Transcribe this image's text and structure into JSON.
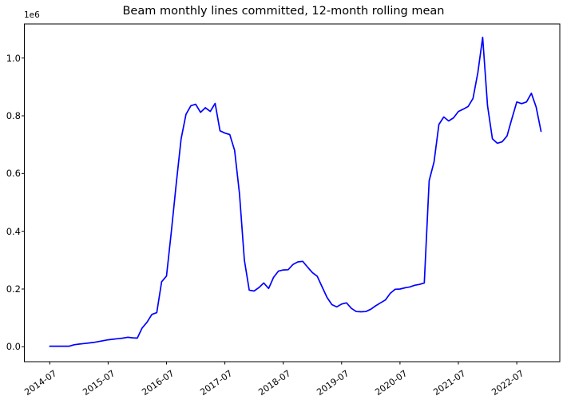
{
  "chart_data": {
    "type": "line",
    "title": "Beam monthly lines committed, 12-month rolling mean",
    "xlabel": "",
    "ylabel": "",
    "y_offset_label": "1e6",
    "grid": false,
    "legend": null,
    "series_color": "#0000ff",
    "axis_color": "#000000",
    "x_tick_labels": [
      "2014-07",
      "2015-07",
      "2016-07",
      "2017-07",
      "2018-07",
      "2019-07",
      "2020-07",
      "2021-07",
      "2022-07"
    ],
    "y_tick_labels": [
      "0.0",
      "0.2",
      "0.4",
      "0.6",
      "0.8",
      "1.0"
    ],
    "ylim": [
      -0.052,
      1.118
    ],
    "value_scale": "1e6",
    "x": [
      "2014-07",
      "2014-08",
      "2014-09",
      "2014-10",
      "2014-11",
      "2014-12",
      "2015-01",
      "2015-02",
      "2015-03",
      "2015-04",
      "2015-05",
      "2015-06",
      "2015-07",
      "2015-08",
      "2015-09",
      "2015-10",
      "2015-11",
      "2015-12",
      "2016-01",
      "2016-02",
      "2016-03",
      "2016-04",
      "2016-05",
      "2016-06",
      "2016-07",
      "2016-08",
      "2016-09",
      "2016-10",
      "2016-11",
      "2016-12",
      "2017-01",
      "2017-02",
      "2017-03",
      "2017-04",
      "2017-05",
      "2017-06",
      "2017-07",
      "2017-08",
      "2017-09",
      "2017-10",
      "2017-11",
      "2017-12",
      "2018-01",
      "2018-02",
      "2018-03",
      "2018-04",
      "2018-05",
      "2018-06",
      "2018-07",
      "2018-08",
      "2018-09",
      "2018-10",
      "2018-11",
      "2018-12",
      "2019-01",
      "2019-02",
      "2019-03",
      "2019-04",
      "2019-05",
      "2019-06",
      "2019-07",
      "2019-08",
      "2019-09",
      "2019-10",
      "2019-11",
      "2019-12",
      "2020-01",
      "2020-02",
      "2020-03",
      "2020-04",
      "2020-05",
      "2020-06",
      "2020-07",
      "2020-08",
      "2020-09",
      "2020-10",
      "2020-11",
      "2020-12",
      "2021-01",
      "2021-02",
      "2021-03",
      "2021-04",
      "2021-05",
      "2021-06",
      "2021-07",
      "2021-08",
      "2021-09",
      "2021-10",
      "2021-11",
      "2021-12",
      "2022-01",
      "2022-02",
      "2022-03",
      "2022-04",
      "2022-05",
      "2022-06",
      "2022-07",
      "2022-08",
      "2022-09",
      "2022-10",
      "2022-11",
      "2022-12"
    ],
    "series": [
      {
        "name": "12-month rolling mean",
        "values": [
          0.002,
          0.002,
          0.002,
          0.002,
          0.002,
          0.007,
          0.009,
          0.011,
          0.013,
          0.015,
          0.018,
          0.021,
          0.024,
          0.026,
          0.028,
          0.03,
          0.033,
          0.031,
          0.03,
          0.065,
          0.085,
          0.112,
          0.118,
          0.225,
          0.245,
          0.4,
          0.565,
          0.72,
          0.805,
          0.835,
          0.84,
          0.812,
          0.828,
          0.815,
          0.843,
          0.748,
          0.74,
          0.735,
          0.68,
          0.53,
          0.3,
          0.196,
          0.193,
          0.205,
          0.221,
          0.202,
          0.24,
          0.262,
          0.266,
          0.267,
          0.285,
          0.294,
          0.296,
          0.276,
          0.257,
          0.244,
          0.207,
          0.171,
          0.146,
          0.138,
          0.148,
          0.152,
          0.133,
          0.122,
          0.121,
          0.122,
          0.13,
          0.142,
          0.152,
          0.162,
          0.185,
          0.199,
          0.2,
          0.204,
          0.207,
          0.213,
          0.216,
          0.221,
          0.575,
          0.64,
          0.77,
          0.796,
          0.782,
          0.793,
          0.815,
          0.823,
          0.832,
          0.86,
          0.95,
          1.072,
          0.835,
          0.72,
          0.705,
          0.71,
          0.73,
          0.79,
          0.848,
          0.842,
          0.848,
          0.878,
          0.83,
          0.746
        ]
      }
    ]
  }
}
